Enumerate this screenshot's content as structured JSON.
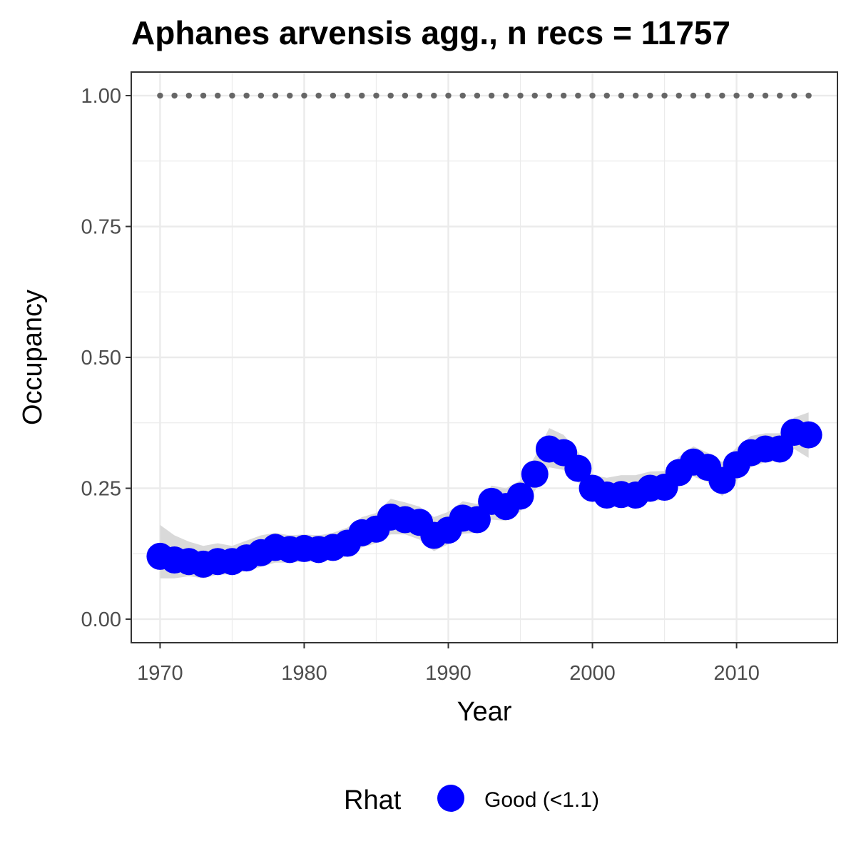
{
  "chart_data": {
    "type": "line",
    "title": "Aphanes arvensis agg., n recs = 11757",
    "xlabel": "Year",
    "ylabel": "Occupancy",
    "xlim": [
      1968,
      2017
    ],
    "ylim": [
      -0.045,
      1.045
    ],
    "x_ticks": [
      1970,
      1980,
      1990,
      2000,
      2010
    ],
    "x_tick_labels": [
      "1970",
      "1980",
      "1990",
      "2000",
      "2010"
    ],
    "y_ticks": [
      0,
      0.25,
      0.5,
      0.75,
      1.0
    ],
    "y_tick_labels": [
      "0.00",
      "0.25",
      "0.50",
      "0.75",
      "1.00"
    ],
    "grid": true,
    "legend": {
      "title": "Rhat",
      "position": "bottom",
      "entries": [
        {
          "label": "Good (<1.1)",
          "color": "#0000ff"
        }
      ]
    },
    "colors": {
      "points": "#0000ff",
      "ribbon": "#d9d9d9",
      "reference_dots": "#666666",
      "panel_border": "#333333",
      "grid": "#ebebeb"
    },
    "reference_line": {
      "y": 1.0,
      "style": "dotted"
    },
    "series": [
      {
        "x": [
          1970,
          1971,
          1972,
          1973,
          1974,
          1975,
          1976,
          1977,
          1978,
          1979,
          1980,
          1981,
          1982,
          1983,
          1984,
          1985,
          1986,
          1987,
          1988,
          1989,
          1990,
          1991,
          1992,
          1993,
          1994,
          1995,
          1996,
          1997,
          1998,
          1999,
          2000,
          2001,
          2002,
          2003,
          2004,
          2005,
          2006,
          2007,
          2008,
          2009,
          2010,
          2011,
          2012,
          2013,
          2014,
          2015
        ],
        "y": [
          0.12,
          0.113,
          0.11,
          0.105,
          0.11,
          0.11,
          0.117,
          0.127,
          0.137,
          0.133,
          0.135,
          0.133,
          0.137,
          0.145,
          0.165,
          0.172,
          0.195,
          0.19,
          0.185,
          0.16,
          0.17,
          0.193,
          0.19,
          0.225,
          0.215,
          0.235,
          0.277,
          0.325,
          0.318,
          0.288,
          0.25,
          0.237,
          0.238,
          0.237,
          0.25,
          0.252,
          0.28,
          0.3,
          0.29,
          0.265,
          0.295,
          0.318,
          0.325,
          0.325,
          0.357,
          0.352
        ],
        "lower": [
          0.078,
          0.078,
          0.082,
          0.078,
          0.085,
          0.086,
          0.092,
          0.1,
          0.108,
          0.108,
          0.11,
          0.11,
          0.113,
          0.12,
          0.137,
          0.145,
          0.162,
          0.162,
          0.152,
          0.13,
          0.143,
          0.163,
          0.165,
          0.19,
          0.188,
          0.205,
          0.245,
          0.29,
          0.285,
          0.262,
          0.23,
          0.215,
          0.215,
          0.215,
          0.225,
          0.228,
          0.255,
          0.272,
          0.262,
          0.235,
          0.265,
          0.29,
          0.3,
          0.302,
          0.325,
          0.308
        ],
        "upper": [
          0.18,
          0.16,
          0.148,
          0.14,
          0.145,
          0.14,
          0.15,
          0.16,
          0.165,
          0.16,
          0.162,
          0.16,
          0.165,
          0.175,
          0.195,
          0.203,
          0.23,
          0.223,
          0.215,
          0.195,
          0.205,
          0.225,
          0.22,
          0.255,
          0.25,
          0.265,
          0.31,
          0.365,
          0.352,
          0.32,
          0.275,
          0.27,
          0.275,
          0.275,
          0.282,
          0.283,
          0.31,
          0.33,
          0.318,
          0.3,
          0.328,
          0.35,
          0.355,
          0.355,
          0.385,
          0.395
        ]
      }
    ]
  }
}
